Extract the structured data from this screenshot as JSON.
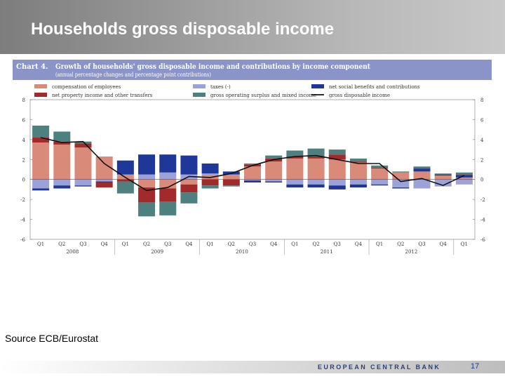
{
  "slide": {
    "title": "Households gross disposable income",
    "source": "Source ECB/Eurostat",
    "bank_name": "EUROPEAN CENTRAL BANK",
    "page_number": "17"
  },
  "chart_data": {
    "type": "bar",
    "chart_label": "Chart 4.",
    "title": "Growth of households' gross disposable income and contributions by income component",
    "subtitle": "(annual percentage changes and percentage point contributions)",
    "ylim": [
      -6,
      8
    ],
    "yticks": [
      -6,
      -4,
      -2,
      0,
      2,
      4,
      6,
      8
    ],
    "categories": [
      "Q1",
      "Q2",
      "Q3",
      "Q4",
      "Q1",
      "Q2",
      "Q3",
      "Q4",
      "Q1",
      "Q2",
      "Q3",
      "Q4",
      "Q1",
      "Q2",
      "Q3",
      "Q4",
      "Q1",
      "Q2",
      "Q3",
      "Q4",
      "Q1"
    ],
    "years": [
      {
        "label": "2008",
        "start": 0,
        "end": 3
      },
      {
        "label": "2009",
        "start": 4,
        "end": 7
      },
      {
        "label": "2010",
        "start": 8,
        "end": 11
      },
      {
        "label": "2011",
        "start": 12,
        "end": 15
      },
      {
        "label": "2012",
        "start": 16,
        "end": 19
      }
    ],
    "series": [
      {
        "name": "compensation of employees",
        "color": "#d98a78",
        "values": [
          3.7,
          3.5,
          3.2,
          2.3,
          0.4,
          -0.8,
          -0.9,
          -0.5,
          0.4,
          0.4,
          1.3,
          1.8,
          2.1,
          2.1,
          2.0,
          1.7,
          1.1,
          0.7,
          0.8,
          0.4,
          0.2
        ]
      },
      {
        "name": "taxes (-)",
        "color": "#9aa2d8",
        "values": [
          -0.9,
          -0.6,
          -0.6,
          -0.2,
          0.1,
          0.5,
          0.7,
          0.5,
          0.2,
          0.1,
          -0.1,
          -0.2,
          -0.5,
          -0.5,
          -0.6,
          -0.5,
          -0.5,
          -0.8,
          -0.9,
          -0.7,
          -0.5
        ]
      },
      {
        "name": "net social benefits and contributions",
        "color": "#1f3799",
        "values": [
          -0.2,
          -0.3,
          -0.1,
          -0.1,
          1.4,
          2.0,
          1.8,
          1.9,
          1.0,
          0.3,
          -0.2,
          -0.1,
          -0.3,
          -0.3,
          -0.4,
          -0.3,
          -0.1,
          -0.1,
          0.3,
          0.1,
          0.2
        ]
      },
      {
        "name": "net property income and other transfers",
        "color": "#a32a2a",
        "values": [
          0.5,
          0.3,
          0.4,
          -0.5,
          -0.2,
          -1.5,
          -1.3,
          -0.8,
          -0.6,
          -0.6,
          0.2,
          0.3,
          0.2,
          0.2,
          0.5,
          0.1,
          0.1,
          0.0,
          0.0,
          0.0,
          0.1
        ]
      },
      {
        "name": "gross operating surplus and mixed income",
        "color": "#4e8080",
        "values": [
          1.2,
          1.0,
          0.2,
          0.0,
          -1.2,
          -1.4,
          -1.4,
          -1.1,
          -0.3,
          -0.1,
          0.1,
          0.3,
          0.6,
          0.8,
          0.5,
          0.3,
          0.2,
          0.1,
          0.2,
          0.1,
          0.2
        ]
      }
    ],
    "line": {
      "name": "gross disposable income",
      "color": "#111111",
      "values": [
        4.2,
        3.7,
        3.8,
        1.6,
        0.2,
        -1.1,
        -0.8,
        0.3,
        0.2,
        0.6,
        1.4,
        2.0,
        2.3,
        2.4,
        2.0,
        1.6,
        1.6,
        -0.2,
        0.1,
        -0.6,
        0.4
      ]
    },
    "legend": [
      {
        "name": "compensation of employees",
        "type": "box",
        "color": "#d98a78"
      },
      {
        "name": "taxes (-)",
        "type": "box",
        "color": "#9aa2d8"
      },
      {
        "name": "net social benefits and contributions",
        "type": "box",
        "color": "#1f3799"
      },
      {
        "name": "net property income and other transfers",
        "type": "box",
        "color": "#a32a2a"
      },
      {
        "name": "gross operating surplus and mixed income",
        "type": "box",
        "color": "#4e8080"
      },
      {
        "name": "gross disposable income",
        "type": "line",
        "color": "#111111"
      }
    ],
    "grid": false,
    "legend_position": "top"
  }
}
